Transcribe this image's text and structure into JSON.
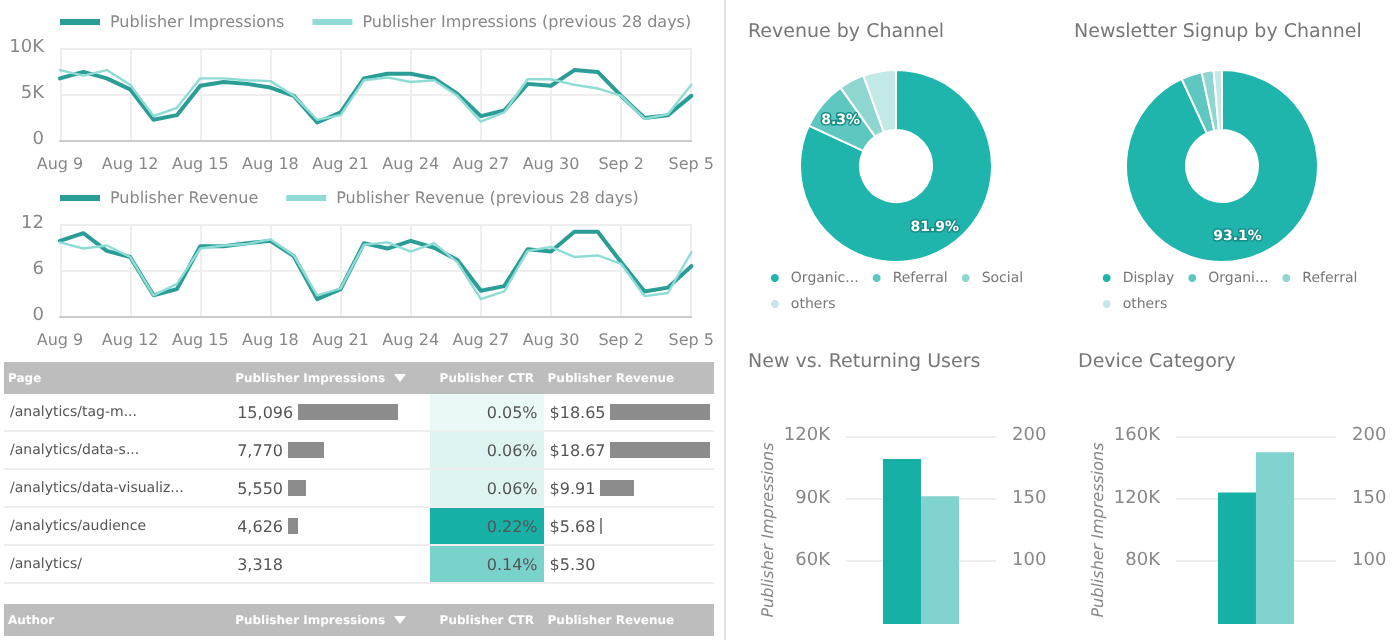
{
  "chart_data": [
    {
      "type": "line",
      "categories": [
        "Aug 9",
        null,
        null,
        "Aug 12",
        null,
        null,
        "Aug 15",
        null,
        null,
        "Aug 18",
        null,
        null,
        "Aug 21",
        null,
        null,
        "Aug 24",
        null,
        null,
        "Aug 27",
        null,
        null,
        "Aug 30",
        null,
        null,
        "Sep 2",
        null,
        null,
        "Sep 5"
      ],
      "series": [
        {
          "name": "Publisher Impressions",
          "color": "#2a9d96",
          "values": [
            6700,
            7400,
            6700,
            5500,
            2200,
            2700,
            5900,
            6300,
            6100,
            5700,
            4800,
            1900,
            3000,
            6700,
            7200,
            7200,
            6700,
            5000,
            2600,
            3200,
            6100,
            5900,
            7600,
            7400,
            4800,
            2400,
            2700,
            4800
          ]
        },
        {
          "name": "Publisher Impressions (previous 28 days)",
          "color": "#8fdcd6",
          "values": [
            7600,
            7000,
            7600,
            6000,
            2600,
            3500,
            6700,
            6700,
            6500,
            6400,
            4800,
            2200,
            2700,
            6500,
            6800,
            6300,
            6500,
            4800,
            2000,
            3000,
            6600,
            6600,
            6000,
            5600,
            4800,
            2300,
            2800,
            6000
          ]
        }
      ],
      "ylim": [
        0,
        10000
      ],
      "yticks": [
        0,
        {
          "value": 5000,
          "label": "5K"
        },
        {
          "value": 10000,
          "label": "10K"
        }
      ],
      "grid": true,
      "legend": "top left",
      "marker": "none",
      "line_style": "solid"
    },
    {
      "type": "line",
      "categories": [
        "Aug 9",
        null,
        null,
        "Aug 12",
        null,
        null,
        "Aug 15",
        null,
        null,
        "Aug 18",
        null,
        null,
        "Aug 21",
        null,
        null,
        "Aug 24",
        null,
        null,
        "Aug 27",
        null,
        null,
        "Aug 30",
        null,
        null,
        "Sep 2",
        null,
        null,
        "Sep 5"
      ],
      "series": [
        {
          "name": "Publisher Revenue",
          "color": "#2a9d96",
          "values": [
            9.8,
            10.8,
            8.5,
            7.7,
            2.7,
            3.5,
            9.1,
            9.1,
            9.5,
            9.8,
            7.8,
            2.2,
            3.5,
            9.5,
            8.8,
            9.8,
            8.9,
            7.3,
            3.3,
            3.9,
            8.7,
            8.4,
            11.0,
            11.0,
            7.0,
            3.2,
            3.7,
            6.5
          ]
        },
        {
          "name": "Publisher Revenue (previous 28 days)",
          "color": "#8fdcd6",
          "values": [
            9.6,
            8.8,
            9.2,
            7.7,
            2.7,
            4.2,
            8.8,
            9.2,
            9.4,
            10.0,
            7.9,
            2.7,
            3.6,
            9.3,
            9.6,
            8.4,
            9.5,
            7.0,
            2.2,
            3.2,
            8.5,
            9.0,
            7.7,
            7.9,
            6.8,
            2.6,
            3.0,
            8.3
          ]
        }
      ],
      "ylim": [
        0,
        12
      ],
      "yticks": [
        0,
        6,
        12
      ],
      "grid": true,
      "legend": "top left",
      "marker": "none",
      "line_style": "solid"
    },
    {
      "type": "other",
      "xlabel": "Page",
      "categories": [
        "/analytics/tag-m...",
        "/analytics/data-s...",
        "/analytics/data-visualiz...",
        "/analytics/audience",
        "/analytics/"
      ],
      "series": [
        {
          "name": "Publisher Impressions",
          "values": [
            15096,
            7770,
            5550,
            4626,
            3318
          ],
          "value_labels": [
            "15,096",
            "7,770",
            "5,550",
            "4,626",
            "3,318"
          ]
        },
        {
          "name": "Publisher CTR",
          "colors": [
            "#eaf8f7",
            "#def4f2",
            "#def4f2",
            "#17b0a7",
            "#7ad2cd"
          ],
          "values": [
            0.05,
            0.06,
            0.06,
            0.22,
            0.14
          ],
          "value_labels": [
            "0.05%",
            "0.06%",
            "0.06%",
            "0.22%",
            "0.14%"
          ]
        },
        {
          "name": "Publisher Revenue",
          "values": [
            18.65,
            18.67,
            9.91,
            5.68,
            5.3
          ],
          "value_labels": [
            "$18.65",
            "$18.67",
            "$9.91",
            "$5.68",
            "$5.30"
          ]
        }
      ]
    },
    {
      "type": "other",
      "xlabel": "Author",
      "series": [
        {
          "name": "Publisher Impressions"
        },
        {
          "name": "Publisher CTR"
        },
        {
          "name": "Publisher Revenue"
        }
      ]
    },
    {
      "type": "donut",
      "title": "Revenue by Channel",
      "categories": [
        "Organic...",
        "Referral",
        "Social",
        "others"
      ],
      "values": [
        81.9,
        8.3,
        4.3,
        5.5
      ],
      "colors": [
        "#1fb5ad",
        "#5ec8c0",
        "#8fd6d1",
        "#c2e9e6"
      ],
      "value_labels": [
        "81.9%",
        "8.3%",
        null,
        null
      ],
      "legend": "bottom"
    },
    {
      "type": "donut",
      "title": "Newsletter Signup by Channel",
      "categories": [
        "Display",
        "Organi...",
        "Referral",
        "others"
      ],
      "values": [
        93.1,
        3.5,
        2.0,
        1.4
      ],
      "colors": [
        "#1fb5ad",
        "#5ec8c0",
        "#8fd6d1",
        "#c2e9e6"
      ],
      "value_labels": [
        "93.1%",
        null,
        null,
        null
      ],
      "legend": "bottom"
    },
    {
      "type": "bar",
      "title": "New vs. Returning Users",
      "ylabel": "Publisher Impressions",
      "categories": [
        null
      ],
      "series": [
        {
          "color": "#17b0a7",
          "values": [
            109000
          ]
        },
        {
          "color": "#80d3ce",
          "values": [
            152
          ],
          "axis": "y2"
        }
      ],
      "ylim": [
        30000,
        120000
      ],
      "yticks": [
        {
          "value": 60000,
          "label": "60K"
        },
        {
          "value": 90000,
          "label": "90K"
        },
        {
          "value": 120000,
          "label": "120K"
        }
      ],
      "y2lim": [
        50,
        200
      ],
      "y2ticks": [
        100,
        150,
        200
      ],
      "grid": "y"
    },
    {
      "type": "bar",
      "title": "Device Category",
      "ylabel": "Publisher Impressions",
      "categories": [
        null
      ],
      "series": [
        {
          "color": "#17b0a7",
          "values": [
            124000
          ]
        },
        {
          "color": "#80d3ce",
          "values": [
            187
          ],
          "axis": "y2"
        }
      ],
      "ylim": [
        40000,
        160000
      ],
      "yticks": [
        {
          "value": 80000,
          "label": "80K"
        },
        {
          "value": 120000,
          "label": "120K"
        },
        {
          "value": 160000,
          "label": "160K"
        }
      ],
      "y2lim": [
        50,
        200
      ],
      "y2ticks": [
        100,
        150,
        200
      ],
      "grid": "y"
    }
  ]
}
